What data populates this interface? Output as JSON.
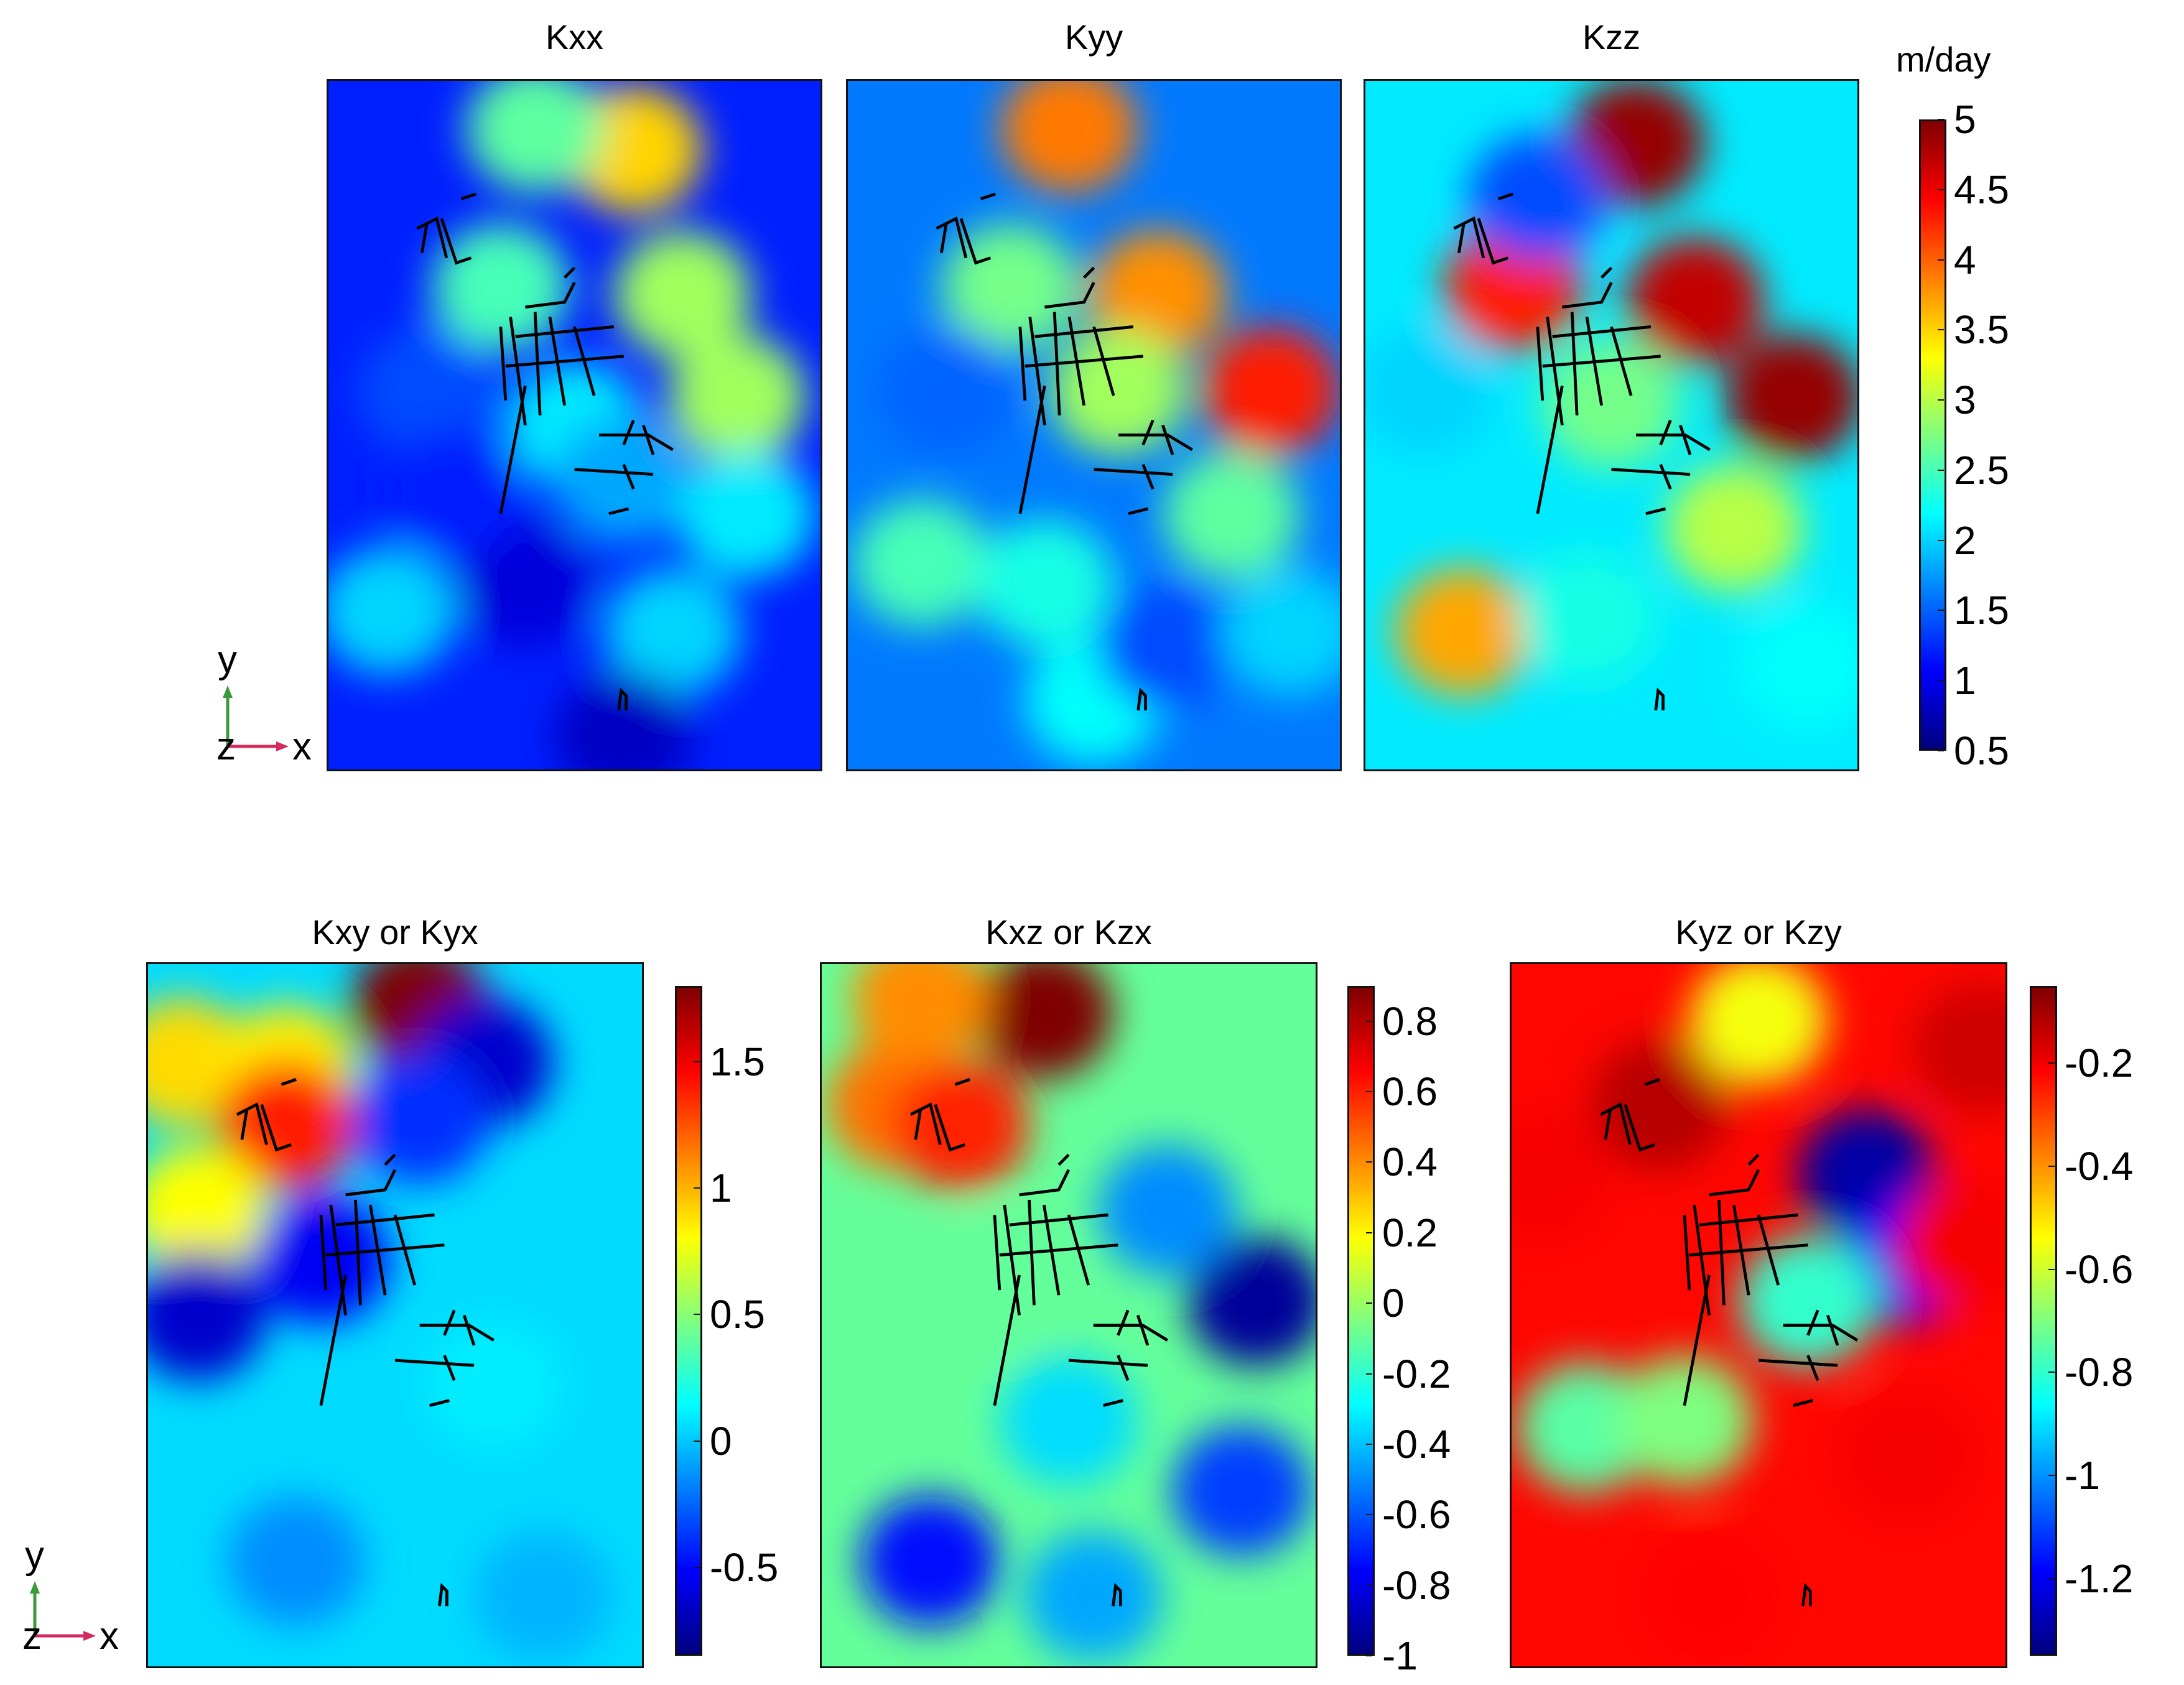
{
  "colormap": [
    "#00007f",
    "#0000ff",
    "#007fff",
    "#00ffff",
    "#7fff7f",
    "#ffff00",
    "#ff7f00",
    "#ff0000",
    "#7f0000"
  ],
  "axis_indicator": {
    "y": "y",
    "z": "z",
    "x": "x",
    "y_color": "#3a9a3a",
    "x_color": "#d22c5c"
  },
  "chart_data": [
    {
      "type": "heatmap",
      "title": "Kxx",
      "colorbar_unit": "m/day",
      "colorbar_range": [
        0.5,
        5
      ],
      "colorbar_ticks": [
        "5",
        "4.5",
        "4",
        "3.5",
        "3",
        "2.5",
        "2",
        "1.5",
        "1",
        "0.5"
      ],
      "zones": [
        {
          "x": 0.62,
          "y": 0.1,
          "value": 3.5
        },
        {
          "x": 0.42,
          "y": 0.07,
          "value": 2.6
        },
        {
          "x": 0.35,
          "y": 0.3,
          "value": 2.5
        },
        {
          "x": 0.72,
          "y": 0.31,
          "value": 2.9
        },
        {
          "x": 0.83,
          "y": 0.46,
          "value": 2.9
        },
        {
          "x": 0.5,
          "y": 0.5,
          "value": 2.1
        },
        {
          "x": 0.6,
          "y": 0.58,
          "value": 1.8
        },
        {
          "x": 0.85,
          "y": 0.63,
          "value": 2.1
        },
        {
          "x": 0.12,
          "y": 0.77,
          "value": 2.0
        },
        {
          "x": 0.7,
          "y": 0.8,
          "value": 2.0
        },
        {
          "x": 0.2,
          "y": 0.45,
          "value": 1.4
        },
        {
          "x": 0.4,
          "y": 0.73,
          "value": 0.9
        },
        {
          "x": 0.6,
          "y": 0.95,
          "value": 0.8
        },
        {
          "x": 0.25,
          "y": 0.6,
          "value": 1.2
        }
      ],
      "background_value": 1.2
    },
    {
      "type": "heatmap",
      "title": "Kyy",
      "colorbar_unit": "m/day",
      "colorbar_range": [
        0.5,
        5
      ],
      "zones": [
        {
          "x": 0.45,
          "y": 0.07,
          "value": 3.9
        },
        {
          "x": 0.63,
          "y": 0.31,
          "value": 3.8
        },
        {
          "x": 0.86,
          "y": 0.45,
          "value": 4.3
        },
        {
          "x": 0.33,
          "y": 0.3,
          "value": 2.7
        },
        {
          "x": 0.55,
          "y": 0.45,
          "value": 2.9
        },
        {
          "x": 0.15,
          "y": 0.7,
          "value": 2.5
        },
        {
          "x": 0.4,
          "y": 0.73,
          "value": 2.3
        },
        {
          "x": 0.78,
          "y": 0.63,
          "value": 2.6
        },
        {
          "x": 0.5,
          "y": 0.9,
          "value": 2.2
        },
        {
          "x": 0.2,
          "y": 0.45,
          "value": 1.5
        },
        {
          "x": 0.65,
          "y": 0.82,
          "value": 1.4
        },
        {
          "x": 0.9,
          "y": 0.8,
          "value": 2.0
        }
      ],
      "background_value": 1.6
    },
    {
      "type": "heatmap",
      "title": "Kzz",
      "colorbar_unit": "m/day",
      "colorbar_range": [
        0.5,
        5
      ],
      "zones": [
        {
          "x": 0.55,
          "y": 0.09,
          "value": 4.9
        },
        {
          "x": 0.67,
          "y": 0.32,
          "value": 4.7
        },
        {
          "x": 0.87,
          "y": 0.46,
          "value": 4.9
        },
        {
          "x": 0.3,
          "y": 0.3,
          "value": 4.3
        },
        {
          "x": 0.5,
          "y": 0.47,
          "value": 2.7
        },
        {
          "x": 0.2,
          "y": 0.8,
          "value": 3.7
        },
        {
          "x": 0.75,
          "y": 0.65,
          "value": 3.0
        },
        {
          "x": 0.45,
          "y": 0.78,
          "value": 2.3
        },
        {
          "x": 0.12,
          "y": 0.45,
          "value": 2.0
        },
        {
          "x": 0.35,
          "y": 0.17,
          "value": 1.4
        },
        {
          "x": 0.6,
          "y": 0.95,
          "value": 2.1
        },
        {
          "x": 0.9,
          "y": 0.85,
          "value": 2.2
        }
      ],
      "background_value": 2.1
    },
    {
      "type": "heatmap",
      "title": "Kxy or Kyx",
      "colorbar_range": [
        -0.85,
        1.8
      ],
      "colorbar_ticks": [
        "1.5",
        "1",
        "0.5",
        "0",
        "-0.5"
      ],
      "zones": [
        {
          "x": 0.55,
          "y": 0.06,
          "value": 1.8
        },
        {
          "x": 0.07,
          "y": 0.14,
          "value": 0.9
        },
        {
          "x": 0.28,
          "y": 0.15,
          "value": 0.85
        },
        {
          "x": 0.28,
          "y": 0.23,
          "value": 1.4
        },
        {
          "x": 0.1,
          "y": 0.35,
          "value": 0.8
        },
        {
          "x": 0.1,
          "y": 0.5,
          "value": -0.65
        },
        {
          "x": 0.35,
          "y": 0.42,
          "value": -0.55
        },
        {
          "x": 0.68,
          "y": 0.14,
          "value": -0.65
        },
        {
          "x": 0.55,
          "y": 0.22,
          "value": -0.4
        },
        {
          "x": 0.7,
          "y": 0.6,
          "value": 0.1
        },
        {
          "x": 0.3,
          "y": 0.85,
          "value": -0.15
        },
        {
          "x": 0.8,
          "y": 0.9,
          "value": -0.05
        }
      ],
      "background_value": 0.05
    },
    {
      "type": "heatmap",
      "title": "Kxz or Kzx",
      "colorbar_range": [
        -1.0,
        0.9
      ],
      "colorbar_ticks": [
        "0.8",
        "0.6",
        "0.4",
        "0.2",
        "0",
        "-0.2",
        "-0.4",
        "-0.6",
        "-0.8",
        "-1"
      ],
      "zones": [
        {
          "x": 0.45,
          "y": 0.07,
          "value": 0.9
        },
        {
          "x": 0.15,
          "y": 0.2,
          "value": 0.45
        },
        {
          "x": 0.2,
          "y": 0.05,
          "value": 0.4
        },
        {
          "x": 0.28,
          "y": 0.23,
          "value": 0.6
        },
        {
          "x": 0.88,
          "y": 0.48,
          "value": -0.95
        },
        {
          "x": 0.7,
          "y": 0.35,
          "value": -0.5
        },
        {
          "x": 0.85,
          "y": 0.75,
          "value": -0.65
        },
        {
          "x": 0.22,
          "y": 0.85,
          "value": -0.75
        },
        {
          "x": 0.55,
          "y": 0.9,
          "value": -0.45
        },
        {
          "x": 0.5,
          "y": 0.65,
          "value": -0.35
        },
        {
          "x": 0.35,
          "y": 0.45,
          "value": -0.1
        }
      ],
      "background_value": -0.1
    },
    {
      "type": "heatmap",
      "title": "Kyz or Kzy",
      "colorbar_range": [
        -1.35,
        -0.05
      ],
      "colorbar_ticks": [
        "-0.2",
        "-0.4",
        "-0.6",
        "-0.8",
        "-1",
        "-1.2"
      ],
      "zones": [
        {
          "x": 0.5,
          "y": 0.08,
          "value": -0.55
        },
        {
          "x": 0.72,
          "y": 0.3,
          "value": -1.3
        },
        {
          "x": 0.8,
          "y": 0.42,
          "value": -1.2
        },
        {
          "x": 0.92,
          "y": 0.4,
          "value": -0.2
        },
        {
          "x": 0.6,
          "y": 0.48,
          "value": -0.8
        },
        {
          "x": 0.15,
          "y": 0.66,
          "value": -0.75
        },
        {
          "x": 0.35,
          "y": 0.65,
          "value": -0.7
        },
        {
          "x": 0.95,
          "y": 0.12,
          "value": -0.15
        },
        {
          "x": 0.3,
          "y": 0.2,
          "value": -0.12
        },
        {
          "x": 0.8,
          "y": 0.7,
          "value": -0.2
        },
        {
          "x": 0.4,
          "y": 0.9,
          "value": -0.22
        },
        {
          "x": 0.06,
          "y": 0.3,
          "value": -0.2
        }
      ],
      "background_value": -0.22
    }
  ]
}
